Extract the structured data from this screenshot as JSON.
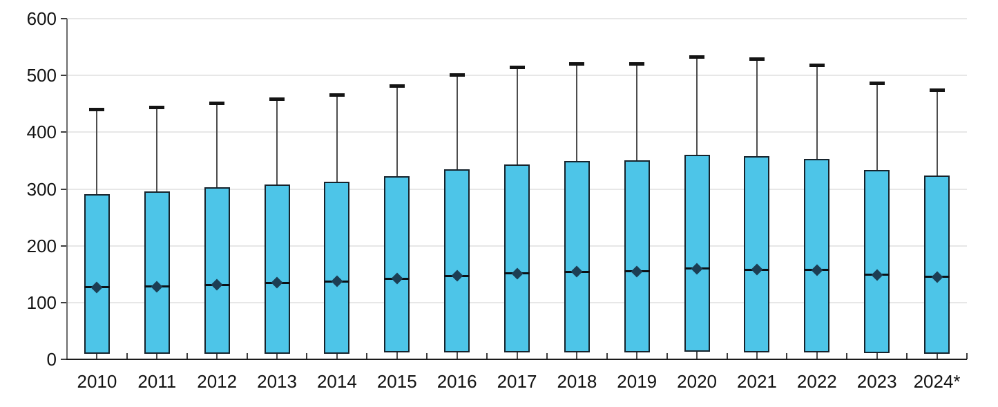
{
  "chart_data": {
    "type": "box",
    "title": "",
    "xlabel": "",
    "ylabel": "",
    "ylim": [
      0,
      600
    ],
    "grid": "horizontal",
    "legend": "none",
    "categories": [
      "2010",
      "2011",
      "2012",
      "2013",
      "2014",
      "2015",
      "2016",
      "2017",
      "2018",
      "2019",
      "2020",
      "2021",
      "2022",
      "2023",
      "2024*"
    ],
    "whisker_low": [
      0,
      0,
      0,
      0,
      0,
      0,
      0,
      0,
      0,
      0,
      0,
      0,
      0,
      0,
      0
    ],
    "q1": [
      10,
      10,
      10,
      10,
      10,
      12,
      12,
      12,
      12,
      12,
      13,
      12,
      12,
      11,
      10
    ],
    "median": [
      127,
      128,
      131,
      135,
      137,
      142,
      147,
      151,
      154,
      155,
      160,
      158,
      157,
      149,
      145
    ],
    "q3": [
      291,
      296,
      303,
      308,
      313,
      323,
      335,
      343,
      349,
      351,
      360,
      358,
      353,
      334,
      324
    ],
    "whisker_high": [
      440,
      444,
      451,
      458,
      465,
      481,
      501,
      514,
      520,
      520,
      533,
      529,
      518,
      486,
      474
    ],
    "yticks": [
      {
        "value": 0,
        "label": "0"
      },
      {
        "value": 100,
        "label": "100"
      },
      {
        "value": 200,
        "label": "200"
      },
      {
        "value": 300,
        "label": "300"
      },
      {
        "value": 400,
        "label": "400"
      },
      {
        "value": 500,
        "label": "500"
      },
      {
        "value": 600,
        "label": "600"
      }
    ],
    "colors": {
      "box_fill": "#4dc5e8",
      "box_border": "#16232c",
      "median": "#0c1116",
      "diamond": "#1c3e54",
      "whisker": "#4d4d4d",
      "cap": "#141414",
      "gridline": "#e7e7e7",
      "x_axis": "#1a1a1a",
      "y_axis": "#6b6b6b",
      "text": "#141414"
    }
  }
}
